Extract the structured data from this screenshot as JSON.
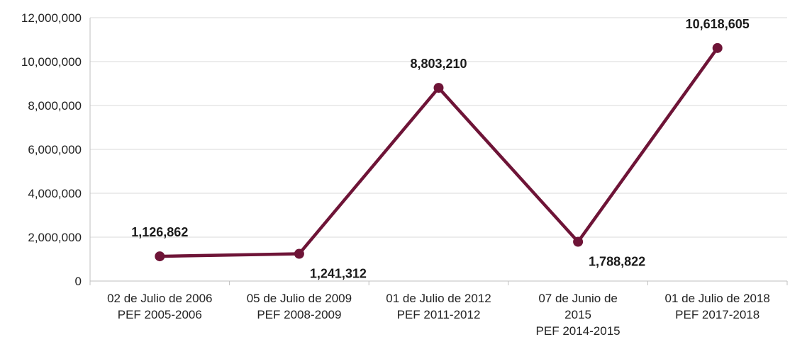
{
  "chart_data": {
    "type": "line",
    "x_categories": [
      [
        "02 de Julio de 2006",
        "PEF 2005-2006"
      ],
      [
        "05 de Julio de 2009",
        "PEF 2008-2009"
      ],
      [
        "01 de Julio de 2012",
        "PEF 2011-2012"
      ],
      [
        "07 de Junio de",
        "2015",
        "PEF 2014-2015"
      ],
      [
        "01 de Julio de 2018",
        "PEF 2017-2018"
      ]
    ],
    "values": [
      1126862,
      1241312,
      8803210,
      1788822,
      10618605
    ],
    "data_labels": [
      "1,126,862",
      "1,241,312",
      "8,803,210",
      "1,788,822",
      "10,618,605"
    ],
    "label_positions": [
      "above",
      "below",
      "above",
      "below",
      "above"
    ],
    "y_ticks": [
      0,
      2000000,
      4000000,
      6000000,
      8000000,
      10000000,
      12000000
    ],
    "y_tick_labels": [
      "0",
      "2,000,000",
      "4,000,000",
      "6,000,000",
      "8,000,000",
      "10,000,000",
      "12,000,000"
    ],
    "ylim": [
      0,
      12000000
    ],
    "grid": true,
    "legend": "none",
    "title": "",
    "xlabel": "",
    "ylabel": "",
    "colors": {
      "series": "#6E1437",
      "grid": "#D9D9D9",
      "axis": "#BFBFBF"
    }
  }
}
